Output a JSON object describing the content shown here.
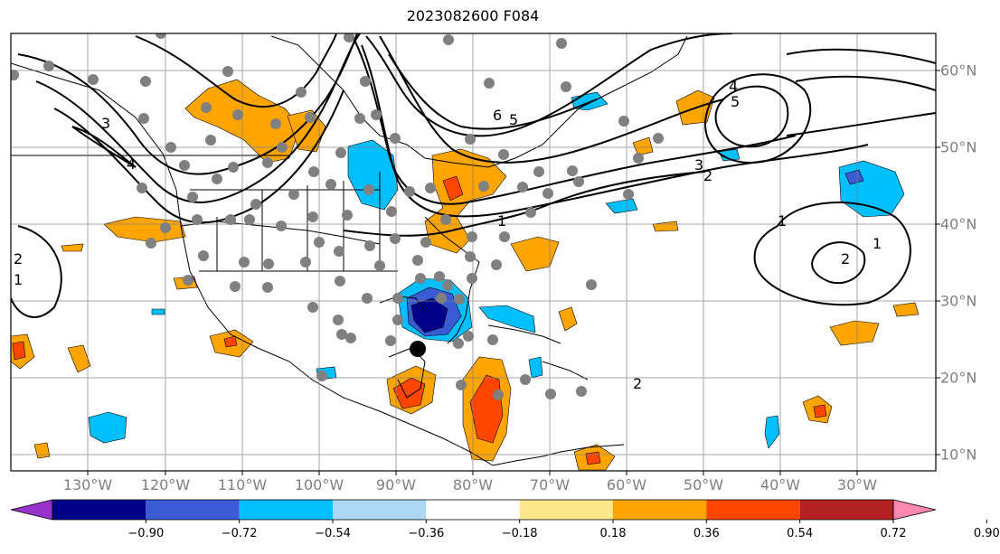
{
  "title": "2023082600 F084",
  "lon_labels": [
    "130°W",
    "120°W",
    "110°W",
    "100°W",
    "90°W",
    "80°W",
    "70°W",
    "60°W",
    "50°W",
    "40°W",
    "30°W"
  ],
  "lat_labels": [
    "60°N",
    "50°N",
    "40°N",
    "30°N",
    "20°N",
    "10°N"
  ],
  "colorbar": {
    "ticks": [
      "−0.90",
      "−0.72",
      "−0.54",
      "−0.36",
      "−0.18",
      "0.18",
      "0.36",
      "0.54",
      "0.72",
      "0.90"
    ],
    "colors": [
      "#9932cc",
      "#00008b",
      "#3b5bd5",
      "#00bfff",
      "#add8f5",
      "#ffffff",
      "#ffe88a",
      "#ffa500",
      "#ff4500",
      "#b22222",
      "#ff88b0"
    ]
  },
  "colors": {
    "orange": "#ffa500",
    "red": "#ff4500",
    "light_blue": "#00bfff",
    "mid_blue": "#3b5bd5",
    "dark_blue": "#00008b",
    "station_dot": "#808080",
    "marker": "#000000"
  },
  "contour_labels": [
    "6",
    "5",
    "4",
    "3",
    "2",
    "1",
    "2",
    "3",
    "4",
    "5",
    "1",
    "2",
    "1",
    "2",
    "1"
  ]
}
